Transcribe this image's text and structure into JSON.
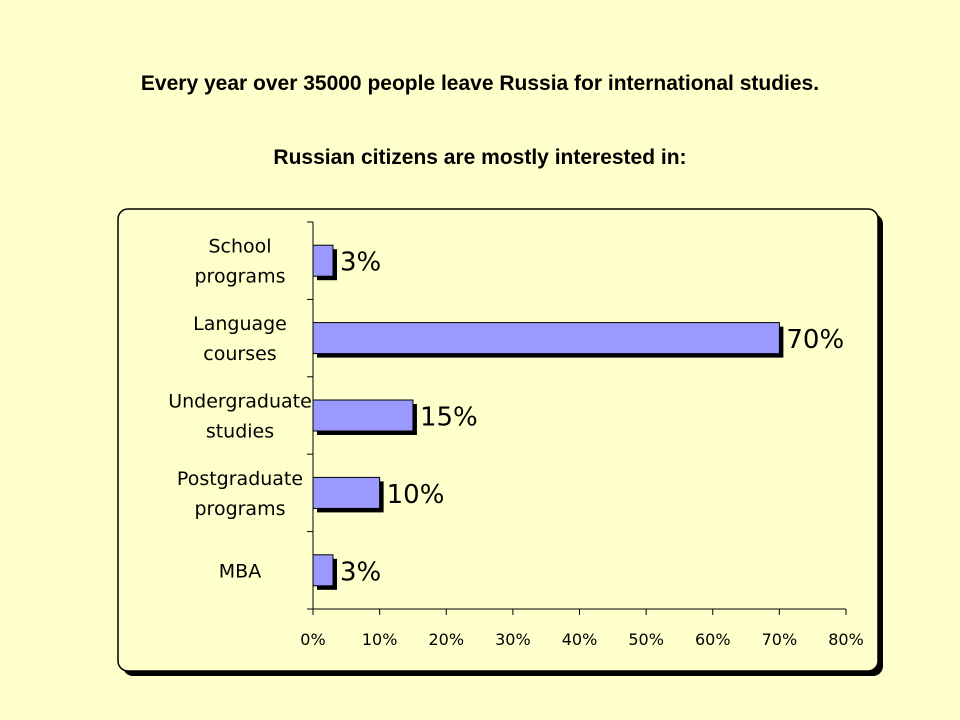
{
  "headline": "Every year over 35000 people leave Russia for international studies.",
  "subhead": "Russian citizens are mostly interested in:",
  "colors": {
    "background": "#FFFFCC",
    "plot_area": "#FFFFCC",
    "bar_fill": "#9999FF",
    "bar_shadow": "#000000"
  },
  "chart_data": {
    "type": "bar",
    "orientation": "horizontal",
    "categories": [
      [
        "School",
        "programs"
      ],
      [
        "Language",
        "courses"
      ],
      [
        "Undergraduate",
        "studies"
      ],
      [
        "Postgraduate",
        "programs"
      ],
      [
        "MBA"
      ]
    ],
    "values": [
      3,
      70,
      15,
      10,
      3
    ],
    "value_labels": [
      "3%",
      "70%",
      "15%",
      "10%",
      "3%"
    ],
    "xlim": [
      0,
      80
    ],
    "x_ticks": [
      0,
      10,
      20,
      30,
      40,
      50,
      60,
      70,
      80
    ],
    "x_tick_labels": [
      "0%",
      "10%",
      "20%",
      "30%",
      "40%",
      "50%",
      "60%",
      "70%",
      "80%"
    ],
    "title": "",
    "xlabel": "",
    "ylabel": "",
    "grid": false,
    "legend": "none"
  }
}
